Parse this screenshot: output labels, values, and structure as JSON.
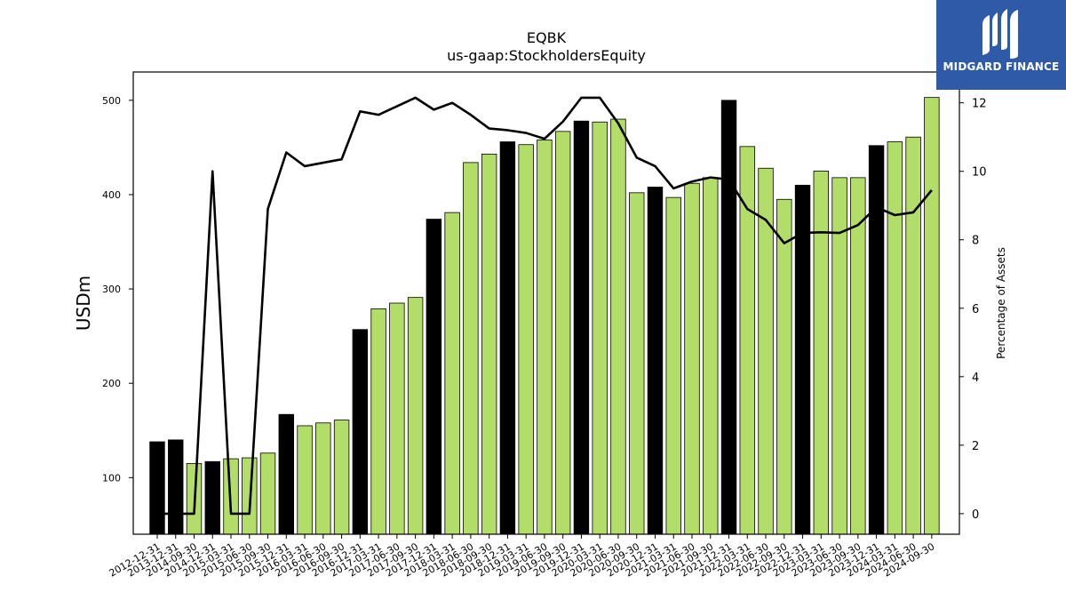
{
  "brand": {
    "name": "MIDGARD FINANCE",
    "bg_color": "#2f5aa8"
  },
  "chart_data": {
    "type": "bar",
    "title": "EQBK",
    "subtitle": "us-gaap:StockholdersEquity",
    "ylabel": "USDm",
    "y2label": "Percentage of Assets",
    "ylim": [
      40,
      530
    ],
    "y2lim": [
      -0.6,
      12.9
    ],
    "yticks": [
      100,
      200,
      300,
      400,
      500
    ],
    "y2ticks": [
      0,
      2,
      4,
      6,
      8,
      10,
      12
    ],
    "colors": {
      "annual": "#000000",
      "quarterly": "#b3dd69",
      "line": "#000000"
    },
    "categories": [
      "2012-12-31",
      "2013-12-31",
      "2014-09-30",
      "2014-12-31",
      "2015-03-31",
      "2015-06-30",
      "2015-09-30",
      "2015-12-31",
      "2016-03-31",
      "2016-06-30",
      "2016-09-30",
      "2016-12-31",
      "2017-03-31",
      "2017-06-30",
      "2017-09-30",
      "2017-12-31",
      "2018-03-31",
      "2018-06-30",
      "2018-09-30",
      "2018-12-31",
      "2019-03-31",
      "2019-06-30",
      "2019-09-30",
      "2019-12-31",
      "2020-03-31",
      "2020-06-30",
      "2020-09-30",
      "2020-12-31",
      "2021-03-31",
      "2021-06-30",
      "2021-09-30",
      "2021-12-31",
      "2022-03-31",
      "2022-06-30",
      "2022-09-30",
      "2022-12-31",
      "2023-03-31",
      "2023-06-30",
      "2023-09-30",
      "2023-12-31",
      "2024-03-31",
      "2024-06-30",
      "2024-09-30"
    ],
    "series": [
      {
        "type": "bar",
        "values": [
          138,
          140,
          115,
          117,
          120,
          121,
          126,
          167,
          155,
          158,
          161,
          257,
          279,
          285,
          291,
          374,
          381,
          434,
          443,
          456,
          453,
          458,
          467,
          478,
          477,
          480,
          402,
          408,
          397,
          412,
          418,
          500,
          451,
          428,
          395,
          410,
          425,
          418,
          418,
          452,
          456,
          461,
          503
        ],
        "period_type": [
          "annual",
          "annual",
          "quarterly",
          "annual",
          "quarterly",
          "quarterly",
          "quarterly",
          "annual",
          "quarterly",
          "quarterly",
          "quarterly",
          "annual",
          "quarterly",
          "quarterly",
          "quarterly",
          "annual",
          "quarterly",
          "quarterly",
          "quarterly",
          "annual",
          "quarterly",
          "quarterly",
          "quarterly",
          "annual",
          "quarterly",
          "quarterly",
          "quarterly",
          "annual",
          "quarterly",
          "quarterly",
          "quarterly",
          "annual",
          "quarterly",
          "quarterly",
          "quarterly",
          "annual",
          "quarterly",
          "quarterly",
          "quarterly",
          "annual",
          "quarterly",
          "quarterly",
          "quarterly"
        ]
      },
      {
        "type": "line",
        "axis": "right",
        "values": [
          0.0,
          0.0,
          0.0,
          10.0,
          0.0,
          0.0,
          8.9,
          10.55,
          10.15,
          10.25,
          10.35,
          11.75,
          11.65,
          11.9,
          12.15,
          11.8,
          12.0,
          11.65,
          11.25,
          11.2,
          11.12,
          10.95,
          11.45,
          12.15,
          12.15,
          11.4,
          10.4,
          10.15,
          9.5,
          9.7,
          9.82,
          9.76,
          8.9,
          8.58,
          7.9,
          8.2,
          8.22,
          8.2,
          8.43,
          8.95,
          8.72,
          8.8,
          9.45
        ]
      }
    ]
  }
}
